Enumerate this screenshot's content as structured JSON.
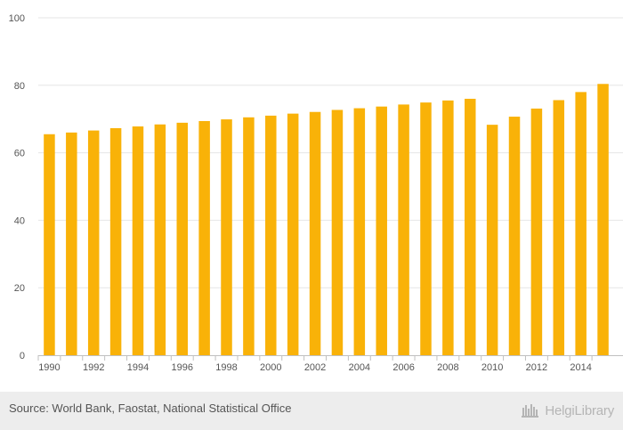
{
  "chart_data": {
    "type": "bar",
    "categories": [
      "1990",
      "1991",
      "1992",
      "1993",
      "1994",
      "1995",
      "1996",
      "1997",
      "1998",
      "1999",
      "2000",
      "2001",
      "2002",
      "2003",
      "2004",
      "2005",
      "2006",
      "2007",
      "2008",
      "2009",
      "2010",
      "2011",
      "2012",
      "2013",
      "2014",
      "2015"
    ],
    "values": [
      65.5,
      66.0,
      66.6,
      67.3,
      67.8,
      68.4,
      68.9,
      69.4,
      69.9,
      70.5,
      71.0,
      71.6,
      72.1,
      72.7,
      73.2,
      73.7,
      74.3,
      74.9,
      75.5,
      76.0,
      68.3,
      70.7,
      73.1,
      75.6,
      78.0,
      80.4
    ],
    "x_tick_labels": [
      "1990",
      "1992",
      "1994",
      "1996",
      "1998",
      "2000",
      "2002",
      "2004",
      "2006",
      "2008",
      "2010",
      "2012",
      "2014"
    ],
    "y_ticks": [
      0,
      20,
      40,
      60,
      80,
      100
    ],
    "ylim": [
      0,
      100
    ],
    "title": "",
    "xlabel": "",
    "ylabel": "",
    "grid": true,
    "bar_color": "#f9b208",
    "grid_color": "#e6e6e6"
  },
  "footer": {
    "source": "Source: World Bank, Faostat, National Statistical Office",
    "brand": "HelgiLibrary"
  },
  "colors": {
    "footer_bg": "#ededed",
    "text": "#555555",
    "brand": "#b5b5b5"
  }
}
